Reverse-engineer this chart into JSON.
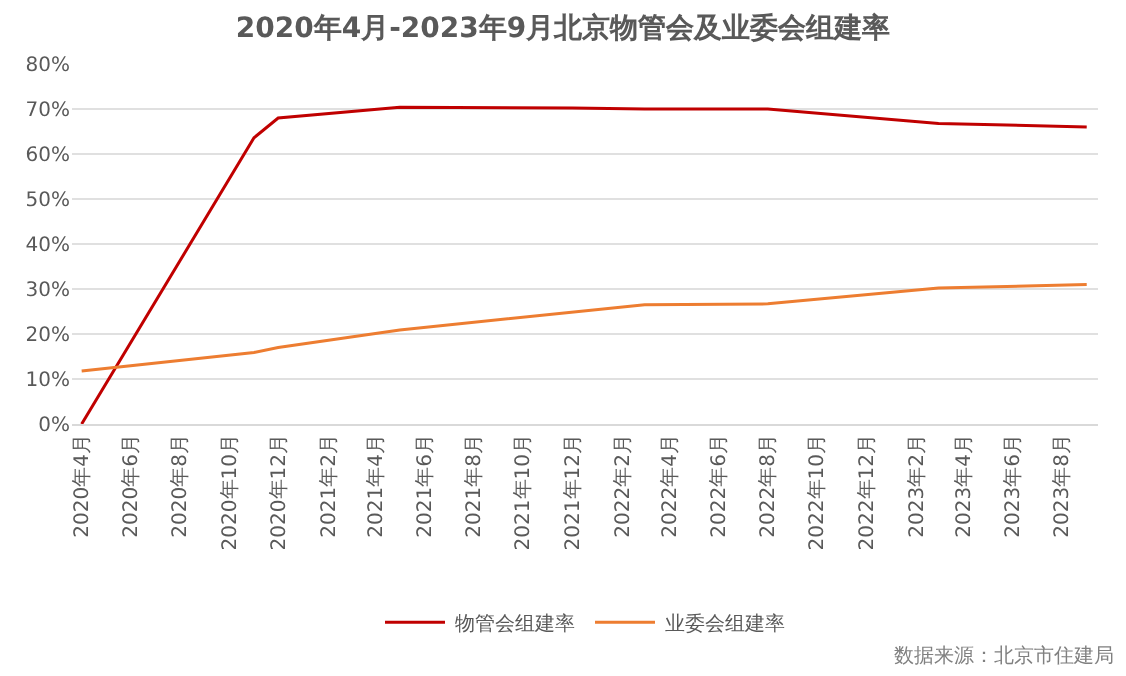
{
  "chart_data": {
    "type": "line",
    "title": "2020年4月-2023年9月北京物管会及业委会组建率",
    "series": [
      {
        "name": "物管会组建率",
        "color": "#c00000",
        "x": [
          "2020-04",
          "2020-11",
          "2020-12",
          "2021-05",
          "2021-12",
          "2022-03",
          "2022-08",
          "2023-03",
          "2023-09"
        ],
        "values": [
          0,
          63.6,
          68,
          70.4,
          70.2,
          70,
          70,
          66.8,
          66
        ]
      },
      {
        "name": "业委会组建率",
        "color": "#ed7d31",
        "x": [
          "2020-04",
          "2020-11",
          "2020-12",
          "2021-05",
          "2022-03",
          "2022-08",
          "2023-03",
          "2023-09"
        ],
        "values": [
          11.8,
          15.9,
          17,
          20.9,
          26.5,
          26.7,
          30.2,
          31
        ]
      }
    ],
    "xlim": [
      "2020-03-20",
      "2023-09-15"
    ],
    "xticks": [
      {
        "value": "2020-04",
        "label": "2020年4月"
      },
      {
        "value": "2020-06",
        "label": "2020年6月"
      },
      {
        "value": "2020-08",
        "label": "2020年8月"
      },
      {
        "value": "2020-10",
        "label": "2020年10月"
      },
      {
        "value": "2020-12",
        "label": "2020年12月"
      },
      {
        "value": "2021-02",
        "label": "2021年2月"
      },
      {
        "value": "2021-04",
        "label": "2021年4月"
      },
      {
        "value": "2021-06",
        "label": "2021年6月"
      },
      {
        "value": "2021-08",
        "label": "2021年8月"
      },
      {
        "value": "2021-10",
        "label": "2021年10月"
      },
      {
        "value": "2021-12",
        "label": "2021年12月"
      },
      {
        "value": "2022-02",
        "label": "2022年2月"
      },
      {
        "value": "2022-04",
        "label": "2022年4月"
      },
      {
        "value": "2022-06",
        "label": "2022年6月"
      },
      {
        "value": "2022-08",
        "label": "2022年8月"
      },
      {
        "value": "2022-10",
        "label": "2022年10月"
      },
      {
        "value": "2022-12",
        "label": "2022年12月"
      },
      {
        "value": "2023-02",
        "label": "2023年2月"
      },
      {
        "value": "2023-04",
        "label": "2023年4月"
      },
      {
        "value": "2023-06",
        "label": "2023年6月"
      },
      {
        "value": "2023-08",
        "label": "2023年8月"
      }
    ],
    "ylim": [
      0,
      80
    ],
    "yticks": [
      {
        "value": 0,
        "label": "0%"
      },
      {
        "value": 10,
        "label": "10%"
      },
      {
        "value": 20,
        "label": "20%"
      },
      {
        "value": 30,
        "label": "30%"
      },
      {
        "value": 40,
        "label": "40%"
      },
      {
        "value": 50,
        "label": "50%"
      },
      {
        "value": 60,
        "label": "60%"
      },
      {
        "value": 70,
        "label": "70%"
      },
      {
        "value": 80,
        "label": "80%"
      }
    ],
    "grid": "y",
    "legend": "bottom",
    "marker": "none",
    "line_style": "solid",
    "annotations": [
      "数据来源：北京市住建局"
    ]
  }
}
